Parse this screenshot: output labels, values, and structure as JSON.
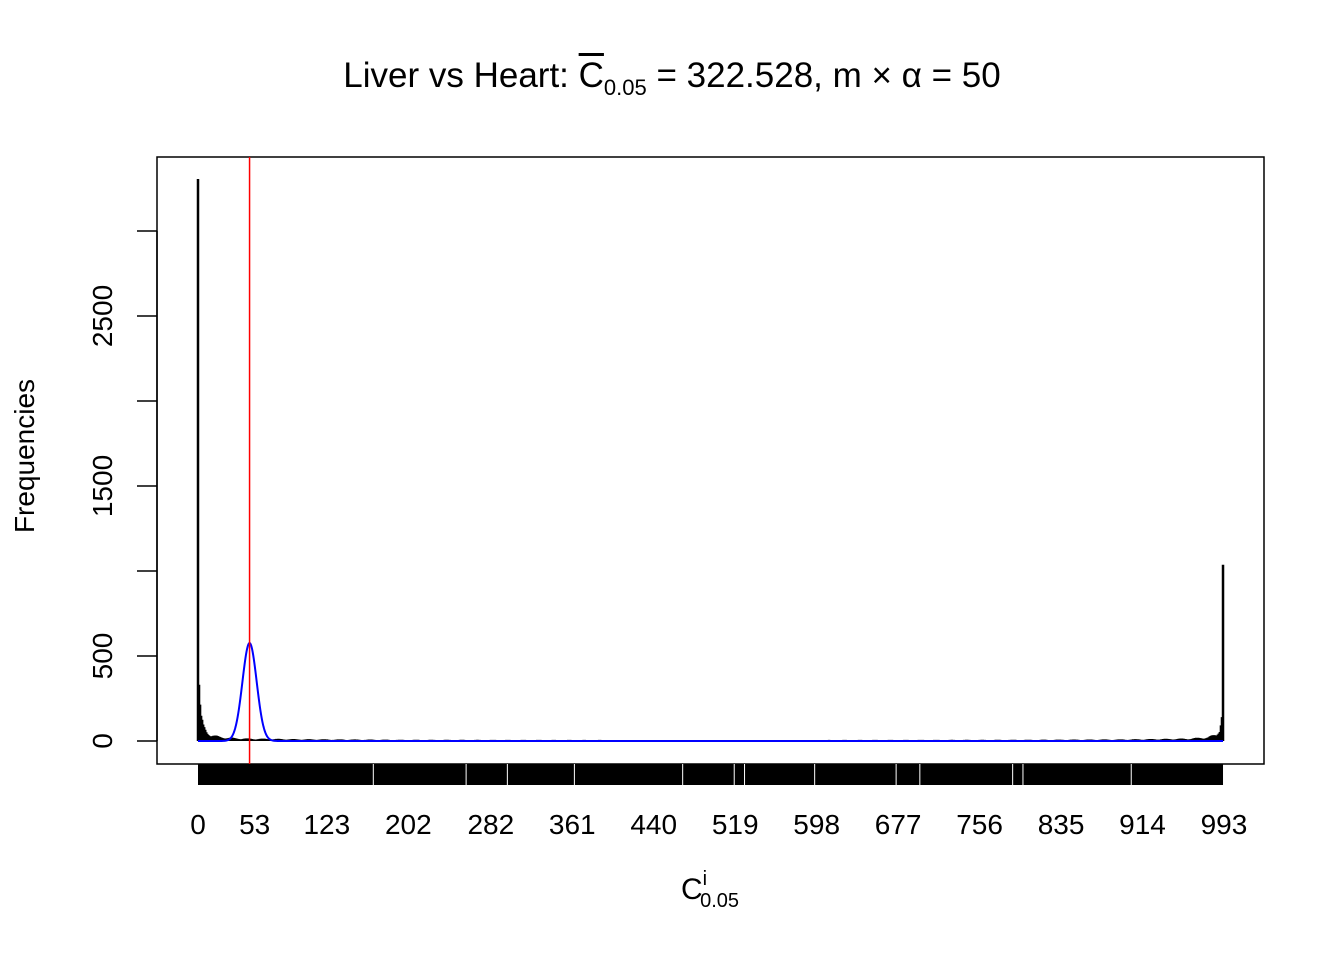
{
  "chart_data": {
    "type": "bar",
    "title": {
      "prefix": "Liver vs Heart: ",
      "symbol": "C",
      "subscript": "0.05",
      "suffix": " = 322.528, m × α = 50"
    },
    "xlabel": {
      "base": "C",
      "sup": "i",
      "sub": "0.05"
    },
    "ylabel": "Frequencies",
    "xlim": [
      0,
      1000
    ],
    "ylim": [
      0,
      3300
    ],
    "x_tick_labels": [
      0,
      53,
      123,
      202,
      282,
      361,
      440,
      519,
      598,
      677,
      756,
      835,
      914,
      993
    ],
    "y_ticks": [
      0,
      500,
      1000,
      1500,
      2000,
      2500,
      3000
    ],
    "y_tick_labels": [
      "0",
      "500",
      "",
      "1500",
      "",
      "2500",
      ""
    ],
    "grid": false,
    "histogram_points": [
      [
        0,
        3306
      ],
      [
        1,
        300
      ],
      [
        2,
        180
      ],
      [
        3,
        120
      ],
      [
        5,
        80
      ],
      [
        8,
        55
      ],
      [
        12,
        35
      ],
      [
        20,
        22
      ],
      [
        35,
        15
      ],
      [
        50,
        12
      ],
      [
        100,
        9
      ],
      [
        200,
        6
      ],
      [
        400,
        5
      ],
      [
        600,
        5
      ],
      [
        800,
        6
      ],
      [
        900,
        8
      ],
      [
        960,
        12
      ],
      [
        980,
        20
      ],
      [
        988,
        35
      ],
      [
        991,
        70
      ],
      [
        993,
        160
      ],
      [
        994,
        1059
      ]
    ],
    "reference_line": {
      "x": 50,
      "color": "#ff0000"
    },
    "normal_curve": {
      "mean": 50,
      "sd": 6.9,
      "peak": 576,
      "color": "#0000ff"
    },
    "colors": {
      "histogram": "#000000",
      "rug": "#000000"
    }
  }
}
